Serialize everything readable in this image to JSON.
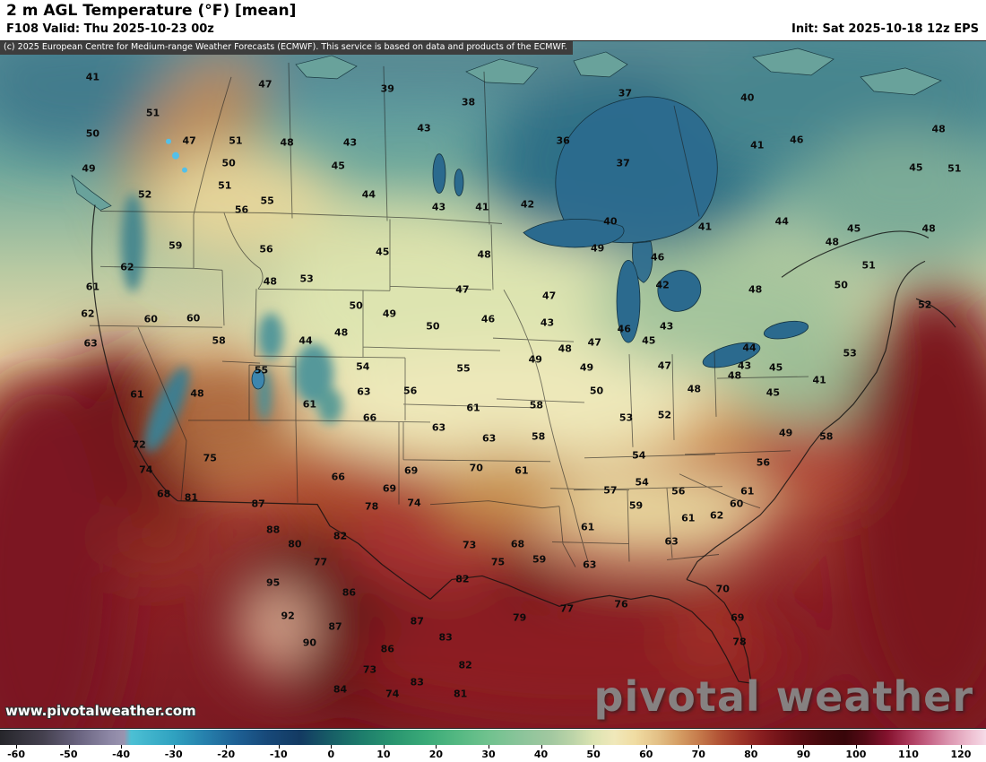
{
  "header": {
    "title": "2 m AGL Temperature (°F) [mean]",
    "valid_line": "F108 Valid: Thu 2025-10-23 00z",
    "init_line": "Init: Sat 2025-10-18 12z EPS",
    "copyright": "(c) 2025 European Centre for Medium-range Weather Forecasts (ECMWF). This service is based on data and products of the ECMWF."
  },
  "watermarks": {
    "brand": "pivotal weather",
    "site_url": "www.pivotalweather.com"
  },
  "colorbar": {
    "unit": "°F",
    "ticks": [
      {
        "label": "-60",
        "p": 1.64
      },
      {
        "label": "-50",
        "p": 6.96
      },
      {
        "label": "-40",
        "p": 12.28
      },
      {
        "label": "-30",
        "p": 17.61
      },
      {
        "label": "-20",
        "p": 22.93
      },
      {
        "label": "-10",
        "p": 28.25
      },
      {
        "label": "0",
        "p": 33.58
      },
      {
        "label": "10",
        "p": 38.9
      },
      {
        "label": "20",
        "p": 44.22
      },
      {
        "label": "30",
        "p": 49.55
      },
      {
        "label": "40",
        "p": 54.87
      },
      {
        "label": "50",
        "p": 60.19
      },
      {
        "label": "60",
        "p": 65.52
      },
      {
        "label": "70",
        "p": 70.84
      },
      {
        "label": "80",
        "p": 76.16
      },
      {
        "label": "90",
        "p": 81.49
      },
      {
        "label": "100",
        "p": 86.81
      },
      {
        "label": "110",
        "p": 92.13
      },
      {
        "label": "120",
        "p": 97.45
      }
    ],
    "stops": [
      {
        "p": 0,
        "c": "#26262b"
      },
      {
        "p": 4.3,
        "c": "#44404e"
      },
      {
        "p": 8.0,
        "c": "#6a6480"
      },
      {
        "p": 11.2,
        "c": "#8e88a6"
      },
      {
        "p": 12.6,
        "c": "#9a94b0"
      },
      {
        "p": 13.3,
        "c": "#4cc0d4"
      },
      {
        "p": 17.6,
        "c": "#30a2c0"
      },
      {
        "p": 20.8,
        "c": "#2680ac"
      },
      {
        "p": 24.0,
        "c": "#1e6094"
      },
      {
        "p": 27.2,
        "c": "#174878"
      },
      {
        "p": 30.4,
        "c": "#133a62"
      },
      {
        "p": 33.6,
        "c": "#175e66"
      },
      {
        "p": 36.8,
        "c": "#1e7e6c"
      },
      {
        "p": 40.0,
        "c": "#2a9670"
      },
      {
        "p": 43.2,
        "c": "#3aaa78"
      },
      {
        "p": 46.4,
        "c": "#54b882"
      },
      {
        "p": 49.5,
        "c": "#70c28e"
      },
      {
        "p": 52.7,
        "c": "#8ac49a"
      },
      {
        "p": 55.9,
        "c": "#a2c8a0"
      },
      {
        "p": 58.1,
        "c": "#bcd4a8"
      },
      {
        "p": 60.2,
        "c": "#dce4b2"
      },
      {
        "p": 62.3,
        "c": "#f0e8ba"
      },
      {
        "p": 64.4,
        "c": "#f0dca2"
      },
      {
        "p": 66.6,
        "c": "#e4c288"
      },
      {
        "p": 68.7,
        "c": "#d6a066"
      },
      {
        "p": 70.8,
        "c": "#c67c4c"
      },
      {
        "p": 72.9,
        "c": "#b25436"
      },
      {
        "p": 75.1,
        "c": "#9e3428"
      },
      {
        "p": 77.2,
        "c": "#881e20"
      },
      {
        "p": 79.3,
        "c": "#701218"
      },
      {
        "p": 81.4,
        "c": "#580c12"
      },
      {
        "p": 83.6,
        "c": "#44080c"
      },
      {
        "p": 85.7,
        "c": "#38060a"
      },
      {
        "p": 87.8,
        "c": "#560a16"
      },
      {
        "p": 90.0,
        "c": "#84122e"
      },
      {
        "p": 92.1,
        "c": "#aa3658"
      },
      {
        "p": 94.2,
        "c": "#c66486"
      },
      {
        "p": 96.3,
        "c": "#dc96b0"
      },
      {
        "p": 98.5,
        "c": "#eec0d2"
      },
      {
        "p": 100,
        "c": "#f6dce8"
      }
    ]
  },
  "map": {
    "temperature_labels": [
      [
        "41",
        9.4,
        5.2
      ],
      [
        "47",
        26.9,
        6.3
      ],
      [
        "39",
        39.3,
        6.9
      ],
      [
        "38",
        47.5,
        8.9
      ],
      [
        "37",
        63.4,
        7.6
      ],
      [
        "40",
        75.8,
        8.2
      ],
      [
        "51",
        15.5,
        10.4
      ],
      [
        "46",
        80.8,
        14.3
      ],
      [
        "48",
        95.2,
        12.8
      ],
      [
        "50",
        9.4,
        13.4
      ],
      [
        "47",
        19.2,
        14.5
      ],
      [
        "51",
        23.9,
        14.5
      ],
      [
        "48",
        29.1,
        14.7
      ],
      [
        "43",
        35.5,
        14.7
      ],
      [
        "43",
        43.0,
        12.6
      ],
      [
        "36",
        57.1,
        14.5
      ],
      [
        "41",
        76.8,
        15.2
      ],
      [
        "49",
        9.0,
        18.5
      ],
      [
        "50",
        23.2,
        17.8
      ],
      [
        "45",
        34.3,
        18.1
      ],
      [
        "37",
        63.2,
        17.8
      ],
      [
        "45",
        92.9,
        18.4
      ],
      [
        "51",
        96.8,
        18.6
      ],
      [
        "52",
        14.7,
        22.3
      ],
      [
        "51",
        22.8,
        21.0
      ],
      [
        "55",
        27.1,
        23.3
      ],
      [
        "56",
        24.5,
        24.6
      ],
      [
        "44",
        37.4,
        22.3
      ],
      [
        "43",
        44.5,
        24.1
      ],
      [
        "41",
        48.9,
        24.1
      ],
      [
        "42",
        53.5,
        23.7
      ],
      [
        "40",
        61.9,
        26.3
      ],
      [
        "41",
        71.5,
        27.0
      ],
      [
        "44",
        79.3,
        26.3
      ],
      [
        "45",
        86.6,
        27.3
      ],
      [
        "48",
        94.2,
        27.3
      ],
      [
        "59",
        17.8,
        29.7
      ],
      [
        "56",
        27.0,
        30.3
      ],
      [
        "45",
        38.8,
        30.7
      ],
      [
        "48",
        49.1,
        31.1
      ],
      [
        "49",
        60.6,
        30.1
      ],
      [
        "46",
        66.7,
        31.5
      ],
      [
        "48",
        84.4,
        29.3
      ],
      [
        "51",
        88.1,
        32.7
      ],
      [
        "62",
        12.9,
        32.9
      ],
      [
        "61",
        9.4,
        35.8
      ],
      [
        "48",
        27.4,
        35.0
      ],
      [
        "53",
        31.1,
        34.6
      ],
      [
        "47",
        46.9,
        36.1
      ],
      [
        "47",
        55.7,
        37.1
      ],
      [
        "42",
        67.2,
        35.5
      ],
      [
        "48",
        76.6,
        36.1
      ],
      [
        "50",
        85.3,
        35.5
      ],
      [
        "62",
        8.9,
        39.7
      ],
      [
        "60",
        15.3,
        40.5
      ],
      [
        "60",
        19.6,
        40.4
      ],
      [
        "50",
        36.1,
        38.5
      ],
      [
        "49",
        39.5,
        39.7
      ],
      [
        "46",
        49.5,
        40.5
      ],
      [
        "43",
        55.5,
        41.0
      ],
      [
        "46",
        63.3,
        41.9
      ],
      [
        "43",
        67.6,
        41.5
      ],
      [
        "52",
        93.8,
        38.4
      ],
      [
        "63",
        9.2,
        44.0
      ],
      [
        "58",
        22.2,
        43.6
      ],
      [
        "44",
        31.0,
        43.6
      ],
      [
        "48",
        34.6,
        42.4
      ],
      [
        "50",
        43.9,
        41.5
      ],
      [
        "48",
        57.3,
        44.8
      ],
      [
        "47",
        60.3,
        43.9
      ],
      [
        "45",
        65.8,
        43.6
      ],
      [
        "44",
        76.0,
        44.7
      ],
      [
        "43",
        75.5,
        47.3
      ],
      [
        "45",
        78.7,
        47.5
      ],
      [
        "41",
        83.1,
        49.3
      ],
      [
        "53",
        86.2,
        45.4
      ],
      [
        "55",
        26.5,
        47.9
      ],
      [
        "54",
        36.8,
        47.4
      ],
      [
        "49",
        54.3,
        46.4
      ],
      [
        "49",
        59.5,
        47.5
      ],
      [
        "47",
        67.4,
        47.3
      ],
      [
        "48",
        74.5,
        48.7
      ],
      [
        "61",
        13.9,
        51.4
      ],
      [
        "48",
        20.0,
        51.3
      ],
      [
        "61",
        31.4,
        52.9
      ],
      [
        "63",
        36.9,
        51.0
      ],
      [
        "56",
        41.6,
        50.9
      ],
      [
        "55",
        47.0,
        47.7
      ],
      [
        "50",
        60.5,
        50.9
      ],
      [
        "48",
        70.4,
        50.7
      ],
      [
        "45",
        78.4,
        51.2
      ],
      [
        "66",
        37.5,
        54.8
      ],
      [
        "61",
        48.0,
        53.4
      ],
      [
        "58",
        54.4,
        53.0
      ],
      [
        "53",
        63.5,
        54.8
      ],
      [
        "52",
        67.4,
        54.4
      ],
      [
        "49",
        79.7,
        57.0
      ],
      [
        "58",
        83.8,
        57.6
      ],
      [
        "72",
        14.1,
        58.7
      ],
      [
        "74",
        14.8,
        62.4
      ],
      [
        "63",
        44.5,
        56.3
      ],
      [
        "63",
        49.6,
        57.8
      ],
      [
        "58",
        54.6,
        57.6
      ],
      [
        "54",
        64.8,
        60.3
      ],
      [
        "56",
        77.4,
        61.3
      ],
      [
        "75",
        21.3,
        60.7
      ],
      [
        "66",
        34.3,
        63.4
      ],
      [
        "69",
        41.7,
        62.5
      ],
      [
        "70",
        48.3,
        62.1
      ],
      [
        "61",
        52.9,
        62.5
      ],
      [
        "57",
        61.9,
        65.4
      ],
      [
        "54",
        65.1,
        64.2
      ],
      [
        "56",
        68.8,
        65.6
      ],
      [
        "59",
        64.5,
        67.6
      ],
      [
        "68",
        16.6,
        65.9
      ],
      [
        "81",
        19.4,
        66.4
      ],
      [
        "87",
        26.2,
        67.4
      ],
      [
        "78",
        37.7,
        67.7
      ],
      [
        "69",
        39.5,
        65.2
      ],
      [
        "74",
        42.0,
        67.2
      ],
      [
        "73",
        47.6,
        73.4
      ],
      [
        "88",
        27.7,
        71.2
      ],
      [
        "82",
        34.5,
        72.0
      ],
      [
        "80",
        29.9,
        73.2
      ],
      [
        "77",
        32.5,
        75.9
      ],
      [
        "68",
        52.5,
        73.2
      ],
      [
        "61",
        59.6,
        70.8
      ],
      [
        "63",
        68.1,
        72.8
      ],
      [
        "61",
        69.8,
        69.5
      ],
      [
        "60",
        74.7,
        67.4
      ],
      [
        "62",
        72.7,
        69.0
      ],
      [
        "61",
        75.8,
        65.5
      ],
      [
        "59",
        54.7,
        75.5
      ],
      [
        "63",
        59.8,
        76.2
      ],
      [
        "95",
        27.7,
        78.8
      ],
      [
        "86",
        35.4,
        80.3
      ],
      [
        "82",
        46.9,
        78.3
      ],
      [
        "75",
        50.5,
        75.9
      ],
      [
        "92",
        29.2,
        83.7
      ],
      [
        "79",
        52.7,
        84.0
      ],
      [
        "77",
        57.5,
        82.7
      ],
      [
        "76",
        63.0,
        82.0
      ],
      [
        "70",
        73.3,
        79.8
      ],
      [
        "69",
        74.8,
        84.0
      ],
      [
        "78",
        75.0,
        87.5
      ],
      [
        "90",
        31.4,
        87.6
      ],
      [
        "87",
        42.3,
        84.5
      ],
      [
        "83",
        45.2,
        86.8
      ],
      [
        "86",
        39.3,
        88.5
      ],
      [
        "73",
        37.5,
        91.5
      ],
      [
        "82",
        47.2,
        90.8
      ],
      [
        "81",
        46.7,
        95.1
      ],
      [
        "74",
        39.8,
        95.1
      ],
      [
        "84",
        34.5,
        94.4
      ],
      [
        "83",
        42.3,
        93.4
      ],
      [
        "87",
        34.0,
        85.3
      ]
    ]
  }
}
